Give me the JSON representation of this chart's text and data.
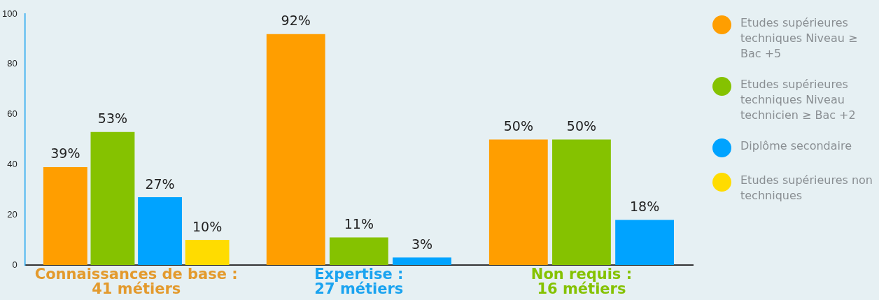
{
  "chart_data": {
    "type": "bar",
    "categories": [
      "Connaissances de base :\n41 métiers",
      "Expertise :\n27 métiers",
      "Non requis :\n16 métiers"
    ],
    "series": [
      {
        "name": "Etudes supérieures techniques Niveau ≥ Bac +5",
        "color": "#ff9e00",
        "values": [
          39,
          92,
          50
        ],
        "value_labels": [
          "39%",
          "92%",
          "50%"
        ]
      },
      {
        "name": "Etudes supérieures techniques Niveau technicien ≥ Bac +2",
        "color": "#85c200",
        "values": [
          53,
          11,
          50
        ],
        "value_labels": [
          "53%",
          "11%",
          "50%"
        ]
      },
      {
        "name": "Diplôme secondaire",
        "color": "#00a3ff",
        "values": [
          27,
          3,
          18
        ],
        "value_labels": [
          "27%",
          "3%",
          "18%"
        ]
      },
      {
        "name": "Etudes supérieures non techniques",
        "color": "#ffdc00",
        "values": [
          10,
          null,
          null
        ],
        "value_labels": [
          "10%",
          null,
          null
        ]
      }
    ],
    "ylim": [
      0,
      100
    ],
    "yticks": [
      0,
      20,
      40,
      60,
      80,
      100
    ],
    "grid": false,
    "legend": "right"
  }
}
